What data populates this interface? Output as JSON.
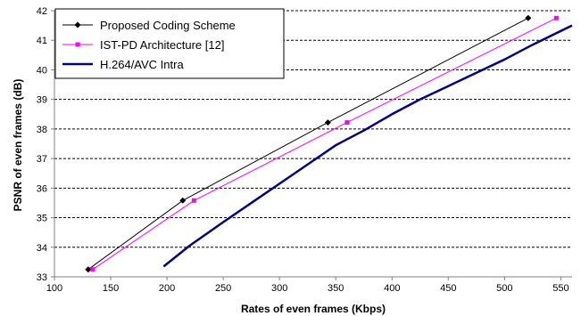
{
  "chart_data": {
    "type": "line",
    "xlabel": "Rates of even frames (Kbps)",
    "ylabel": "PSNR of even frames (dB)",
    "xlim": [
      100,
      560
    ],
    "ylim": [
      33,
      42
    ],
    "x_ticks": [
      "100",
      "150",
      "200",
      "250",
      "300",
      "350",
      "400",
      "450",
      "500",
      "550"
    ],
    "y_ticks": [
      "33",
      "34",
      "35",
      "36",
      "37",
      "38",
      "39",
      "40",
      "41",
      "42"
    ],
    "grid": "horizontal dashed",
    "legend_placement": "top-left",
    "series": [
      {
        "name": "Proposed Coding Scheme",
        "color": "#000000",
        "marker": "diamond",
        "x": [
          130,
          214,
          343,
          521
        ],
        "y": [
          33.25,
          35.58,
          38.22,
          41.75
        ]
      },
      {
        "name": "IST-PD Architecture [12]",
        "color": "#ff00ff",
        "marker": "square",
        "x": [
          134,
          224,
          360,
          546
        ],
        "y": [
          33.25,
          35.58,
          38.22,
          41.75
        ]
      },
      {
        "name": "H.264/AVC Intra",
        "color": "#000080",
        "marker": "none",
        "x": [
          197,
          220,
          250,
          275,
          300,
          325,
          350,
          375,
          400,
          425,
          450,
          475,
          500,
          525,
          560
        ],
        "y": [
          33.35,
          34.05,
          34.85,
          35.5,
          36.15,
          36.8,
          37.45,
          37.95,
          38.5,
          39.0,
          39.45,
          39.9,
          40.35,
          40.85,
          41.5
        ]
      }
    ]
  }
}
